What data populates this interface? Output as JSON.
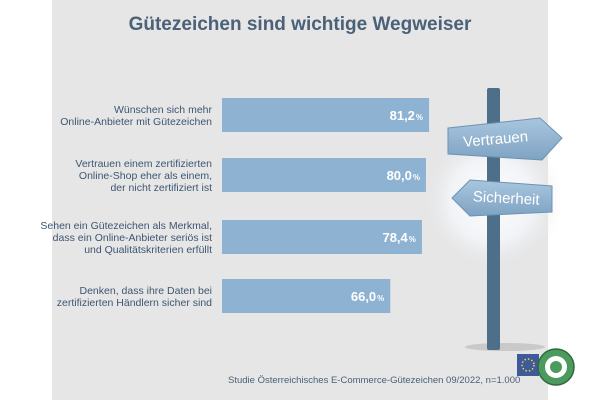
{
  "header": {
    "title": "Gütezeichen sind wichtige Wegweiser"
  },
  "chart_data": {
    "type": "bar",
    "orientation": "horizontal",
    "title": "Gütezeichen sind wichtige Wegweiser",
    "unit": "%",
    "xlim": [
      0,
      100
    ],
    "categories": [
      [
        "Wünschen sich mehr",
        "Online-Anbieter mit Gütezeichen"
      ],
      [
        "Vertrauen einem zertifizierten",
        "Online-Shop eher als einem,",
        "der nicht zertifiziert ist"
      ],
      [
        "Sehen ein Gütezeichen als Merkmal,",
        "dass ein Online-Anbieter seriös ist",
        "und Qualitätskriterien erfüllt"
      ],
      [
        "Denken, dass ihre Daten bei",
        "zertifizierten Händlern sicher sind"
      ]
    ],
    "values": [
      81.2,
      80.0,
      78.4,
      66.0
    ],
    "value_labels": [
      "81,2",
      "80,0",
      "78,4",
      "66,0"
    ],
    "bar_color": "#8eb2d1"
  },
  "signpost": {
    "sign1": "Vertrauen",
    "sign2": "Sicherheit"
  },
  "footer": {
    "source": "Studie Österreichisches E-Commerce-Gütezeichen 09/2022, n=1.000"
  },
  "colors": {
    "panel": "#e6e6e6",
    "title": "#4a6177",
    "label": "#3d5670",
    "pole": "#4e6f8a"
  }
}
